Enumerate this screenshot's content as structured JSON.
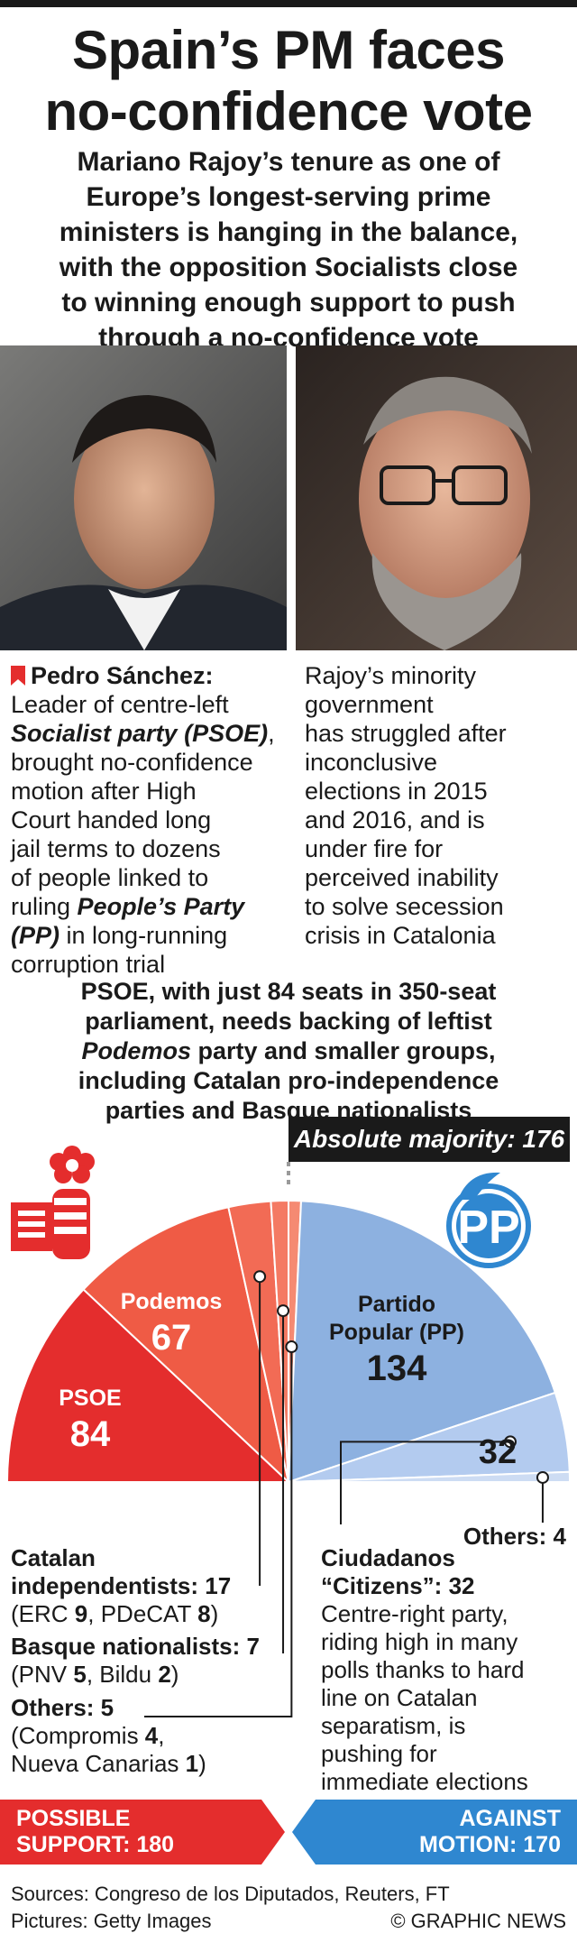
{
  "header": {
    "title_line1": "Spain’s PM faces",
    "title_line2": "no-confidence vote",
    "subtitle_lines": [
      "Mariano Rajoy’s tenure as one of",
      "Europe’s longest-serving prime",
      "ministers is hanging in the balance,",
      "with the opposition Socialists close",
      "to winning enough support to push",
      "through a no-confidence vote"
    ]
  },
  "bios": {
    "sanchez": {
      "name": "Pedro Sánchez:",
      "t1": "Leader of centre-left",
      "party": "Socialist party (PSOE)",
      "t2": ",",
      "t3": "brought no-confidence",
      "t4": "motion after High",
      "t5": "Court handed long",
      "t6": "jail terms to dozens",
      "t7": "of people linked to",
      "t8": "ruling ",
      "pp": "People’s Party",
      "pp2": "(PP)",
      "t9": " in long-running",
      "t10": "corruption trial"
    },
    "rajoy_lines": [
      "Rajoy’s minority",
      "government",
      "has struggled after",
      "inconclusive",
      "elections in 2015",
      "and 2016, and is",
      "under fire for",
      "perceived inability",
      "to solve secession",
      "crisis in Catalonia"
    ]
  },
  "intro": {
    "l1": "PSOE, with just 84 seats in 350-seat",
    "l2": "parliament, needs backing of leftist",
    "l3_party": "Podemos",
    "l3_rest": " party and smaller groups,",
    "l4": "including Catalan pro-independence",
    "l5": "parties and Basque nationalists"
  },
  "chart_data": {
    "type": "pie",
    "subtype": "parliament-semicircle",
    "total_seats": 350,
    "majority_label": "Absolute majority: 176",
    "segments": [
      {
        "name": "PSOE",
        "value": 84,
        "color": "#e42d2d"
      },
      {
        "name": "Podemos",
        "value": 67,
        "color": "#ef5b45"
      },
      {
        "name": "Catalan independentists",
        "value": 17,
        "color": "#f26b55"
      },
      {
        "name": "Basque nationalists",
        "value": 7,
        "color": "#f47a63"
      },
      {
        "name": "Others",
        "value": 5,
        "color": "#f58a72"
      },
      {
        "name": "Partido Popular (PP)",
        "value": 134,
        "color": "#8db1e0"
      },
      {
        "name": "Ciudadanos “Citizens”",
        "value": 32,
        "color": "#b3cbef"
      },
      {
        "name": "Others",
        "value": 4,
        "color": "#cddcf3"
      }
    ],
    "labels": {
      "psoe": "PSOE",
      "psoe_value": "84",
      "podemos": "Podemos",
      "podemos_value": "67",
      "pp_line1": "Partido",
      "pp_line2": "Popular (PP)",
      "pp_value": "134",
      "cs_value": "32",
      "others_right": "Others: 4",
      "cat_line1": "Catalan",
      "cat_line2": "independentists: 17",
      "cat_line3_a": "(ERC ",
      "cat_line3_b": "9",
      "cat_line3_c": ", PDeCAT ",
      "cat_line3_d": "8",
      "cat_line3_e": ")",
      "basque_line1": "Basque nationalists: 7",
      "basque_line2_a": "(PNV ",
      "basque_line2_b": "5",
      "basque_line2_c": ", Bildu ",
      "basque_line2_d": "2",
      "basque_line2_e": ")",
      "others_left1": "Others: 5",
      "others_left2_a": "(Compromis ",
      "others_left2_b": "4",
      "others_left2_c": ",",
      "others_left3_a": "Nueva Canarias ",
      "others_left3_b": "1",
      "others_left3_c": ")",
      "cs_line1": "Ciudadanos",
      "cs_line2": "“Citizens”: 32",
      "cs_desc": [
        "Centre-right party,",
        "riding high in many",
        "polls thanks to hard",
        "line on Catalan",
        "separatism, is",
        "pushing for",
        "immediate elections"
      ]
    }
  },
  "footer": {
    "support_l1": "POSSIBLE",
    "support_l2": "SUPPORT: 180",
    "against_l1": "AGAINST",
    "against_l2": "MOTION: 170",
    "sources": "Sources: Congreso de los Diputados, Reuters, FT",
    "pictures": "Pictures: Getty Images",
    "credit": "© GRAPHIC NEWS"
  },
  "colors": {
    "psoe_red": "#e42d2d",
    "pp_blue": "#8db1e0",
    "support_red": "#e42d2d",
    "against_blue": "#2f87d0",
    "majority_box": "#1a1a1a"
  },
  "icons": [
    "psoe-logo-icon",
    "pp-logo-icon",
    "party-marker-icon"
  ]
}
